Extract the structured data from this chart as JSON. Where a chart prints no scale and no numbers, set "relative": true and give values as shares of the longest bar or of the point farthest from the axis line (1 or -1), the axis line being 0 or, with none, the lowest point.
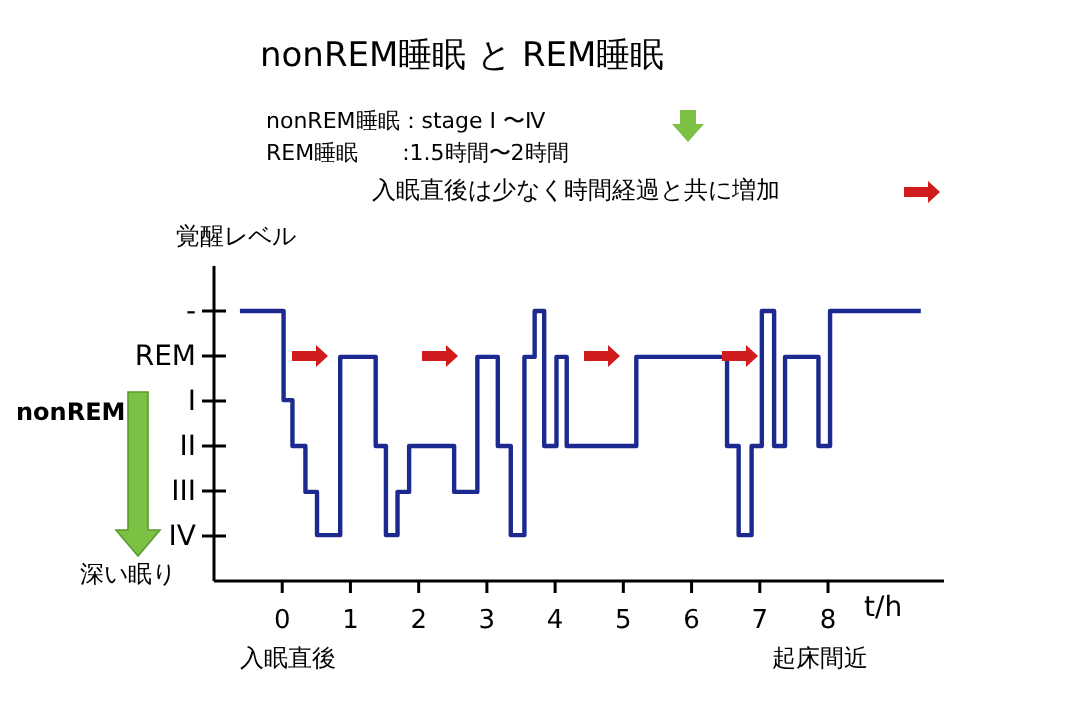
{
  "chart_data": {
    "type": "step",
    "title": "nonREM睡眠  と  REM睡眠",
    "annotations": [
      "nonREM睡眠：stage Ⅰ 〜Ⅳ",
      "REM睡眠　　:1.5時間〜2時間",
      "入眠直後は少なく時間経過と共に増加",
      "nonREM",
      "深い眠り",
      "入眠直後",
      "起床間近"
    ],
    "xlabel": "t/h",
    "ylabel": "覚醒レベル",
    "x": [
      -0.62,
      0.02,
      0.15,
      0.34,
      0.51,
      0.85,
      1.37,
      1.52,
      1.69,
      1.86,
      2.52,
      2.86,
      3.16,
      3.35,
      3.55,
      3.7,
      3.84,
      4.02,
      4.17,
      5.19,
      6.52,
      6.69,
      6.88,
      7.03,
      7.21,
      7.37,
      7.86,
      8.03,
      9.36
    ],
    "y_categories": [
      "-",
      "REM",
      "I",
      "II",
      "III",
      "IV"
    ],
    "relative": true,
    "series": [
      {
        "color": "#1c2a8f",
        "values": [
          1,
          0.67,
          0.5,
          0.33,
          0.17,
          0.83,
          0.5,
          0.17,
          0.33,
          0.5,
          0.33,
          0.83,
          0.5,
          0.17,
          0.83,
          1,
          0.5,
          0.83,
          0.5,
          0.83,
          0.5,
          0.17,
          0.5,
          1,
          0.5,
          0.83,
          0.5,
          1,
          1
        ]
      }
    ],
    "xlim": [
      -1,
      9.7
    ],
    "xticks": [
      0,
      1,
      2,
      3,
      4,
      5,
      6,
      7,
      8
    ],
    "marker": "none",
    "line_style": "solid"
  }
}
